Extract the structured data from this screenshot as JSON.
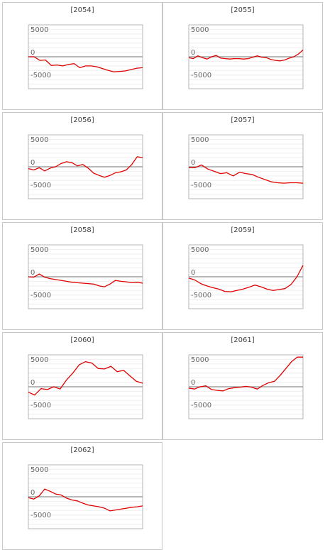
{
  "chart_data": [
    {
      "type": "line",
      "title": "[2054]",
      "yticks": [
        5000,
        0,
        -5000
      ],
      "ylim": [
        -7000,
        7000
      ],
      "color": "#e00000",
      "x": [
        0,
        1,
        2,
        3,
        4,
        5,
        6,
        7,
        8,
        9,
        10,
        11,
        12,
        13,
        14,
        15,
        16,
        17,
        18,
        19,
        20
      ],
      "values": [
        0,
        0,
        -800,
        -700,
        -1900,
        -1800,
        -2000,
        -1700,
        -1500,
        -2400,
        -2000,
        -2000,
        -2200,
        -2600,
        -3000,
        -3300,
        -3200,
        -3100,
        -2800,
        -2500,
        -2400
      ]
    },
    {
      "type": "line",
      "title": "[2055]",
      "yticks": [
        5000,
        0,
        -5000
      ],
      "ylim": [
        -7000,
        7000
      ],
      "color": "#e00000",
      "x": [
        0,
        1,
        2,
        3,
        4,
        5,
        6,
        7,
        8,
        9,
        10,
        11,
        12,
        13,
        14,
        15,
        16,
        17,
        18,
        19,
        20,
        21,
        22,
        23,
        24,
        25
      ],
      "values": [
        -200,
        -400,
        200,
        -200,
        -500,
        0,
        300,
        -300,
        -400,
        -500,
        -400,
        -400,
        -500,
        -400,
        -100,
        200,
        -100,
        -200,
        -600,
        -800,
        -900,
        -700,
        -300,
        0,
        600,
        1500
      ]
    },
    {
      "type": "line",
      "title": "[2056]",
      "yticks": [
        5000,
        0,
        -5000
      ],
      "ylim": [
        -7000,
        7000
      ],
      "color": "#e00000",
      "x": [
        0,
        1,
        2,
        3,
        4,
        5,
        6,
        7,
        8,
        9,
        10,
        11,
        12,
        13,
        14,
        15,
        16,
        17,
        18,
        19,
        20,
        21
      ],
      "values": [
        -400,
        -700,
        -200,
        -900,
        -300,
        0,
        700,
        1100,
        900,
        200,
        500,
        -300,
        -1400,
        -1900,
        -2300,
        -1900,
        -1300,
        -1100,
        -700,
        500,
        2200,
        2000
      ]
    },
    {
      "type": "line",
      "title": "[2057]",
      "yticks": [
        5000,
        0,
        -5000
      ],
      "ylim": [
        -7000,
        7000
      ],
      "color": "#e00000",
      "x": [
        0,
        1,
        2,
        3,
        4,
        5,
        6,
        7,
        8,
        9,
        10,
        11,
        12,
        13,
        14,
        15,
        16,
        17,
        18
      ],
      "values": [
        -200,
        -200,
        400,
        -500,
        -1000,
        -1500,
        -1300,
        -2000,
        -1200,
        -1500,
        -1700,
        -2300,
        -2800,
        -3300,
        -3500,
        -3600,
        -3500,
        -3500,
        -3600
      ]
    },
    {
      "type": "line",
      "title": "[2058]",
      "yticks": [
        5000,
        0,
        -5000
      ],
      "ylim": [
        -7000,
        7000
      ],
      "color": "#e00000",
      "x": [
        0,
        1,
        2,
        3,
        4,
        5,
        6,
        7,
        8,
        9,
        10,
        11,
        12,
        13,
        14,
        15,
        16,
        17,
        18,
        19,
        20,
        21
      ],
      "values": [
        0,
        -100,
        600,
        -100,
        -400,
        -600,
        -800,
        -1000,
        -1200,
        -1300,
        -1400,
        -1500,
        -1600,
        -2000,
        -2200,
        -1600,
        -800,
        -1000,
        -1100,
        -1300,
        -1200,
        -1400
      ]
    },
    {
      "type": "line",
      "title": "[2059]",
      "yticks": [
        5000,
        0,
        -5000
      ],
      "ylim": [
        -7000,
        7000
      ],
      "color": "#e00000",
      "x": [
        0,
        1,
        2,
        3,
        4,
        5,
        6,
        7,
        8,
        9,
        10,
        11,
        12,
        13,
        14,
        15,
        16,
        17,
        18,
        19
      ],
      "values": [
        -300,
        -700,
        -1500,
        -2000,
        -2400,
        -2700,
        -3200,
        -3300,
        -3000,
        -2700,
        -2300,
        -1800,
        -2200,
        -2700,
        -3000,
        -2800,
        -2600,
        -1700,
        0,
        2500
      ]
    },
    {
      "type": "line",
      "title": "[2060]",
      "yticks": [
        5000,
        0,
        -5000
      ],
      "ylim": [
        -7000,
        7000
      ],
      "color": "#e00000",
      "x": [
        0,
        1,
        2,
        3,
        4,
        5,
        6,
        7,
        8,
        9,
        10,
        11,
        12,
        13,
        14,
        15,
        16,
        17,
        18
      ],
      "values": [
        -1200,
        -1800,
        -400,
        -600,
        0,
        -500,
        1500,
        3000,
        4800,
        5500,
        5200,
        4000,
        3900,
        4500,
        3300,
        3600,
        2400,
        1200,
        800
      ]
    },
    {
      "type": "line",
      "title": "[2061]",
      "yticks": [
        5000,
        0,
        -5000
      ],
      "ylim": [
        -7000,
        7000
      ],
      "color": "#e00000",
      "x": [
        0,
        1,
        2,
        3,
        4,
        5,
        6,
        7,
        8,
        9,
        10,
        11,
        12,
        13,
        14,
        15,
        16,
        17,
        18,
        19,
        20
      ],
      "values": [
        -300,
        -500,
        0,
        200,
        -600,
        -800,
        -900,
        -400,
        -200,
        -100,
        100,
        -100,
        -500,
        300,
        900,
        1200,
        2500,
        4000,
        5500,
        6500,
        6500
      ]
    },
    {
      "type": "line",
      "title": "[2062]",
      "yticks": [
        5000,
        0,
        -5000
      ],
      "ylim": [
        -7000,
        7000
      ],
      "color": "#e00000",
      "x": [
        0,
        1,
        2,
        3,
        4,
        5,
        6,
        7,
        8,
        9,
        10,
        11,
        12,
        13,
        14,
        15,
        16,
        17,
        18,
        19,
        20,
        21
      ],
      "values": [
        -200,
        -500,
        200,
        1700,
        1200,
        600,
        400,
        -300,
        -700,
        -900,
        -1400,
        -1800,
        -2000,
        -2200,
        -2500,
        -3100,
        -2900,
        -2700,
        -2500,
        -2300,
        -2200,
        -2000
      ]
    }
  ]
}
